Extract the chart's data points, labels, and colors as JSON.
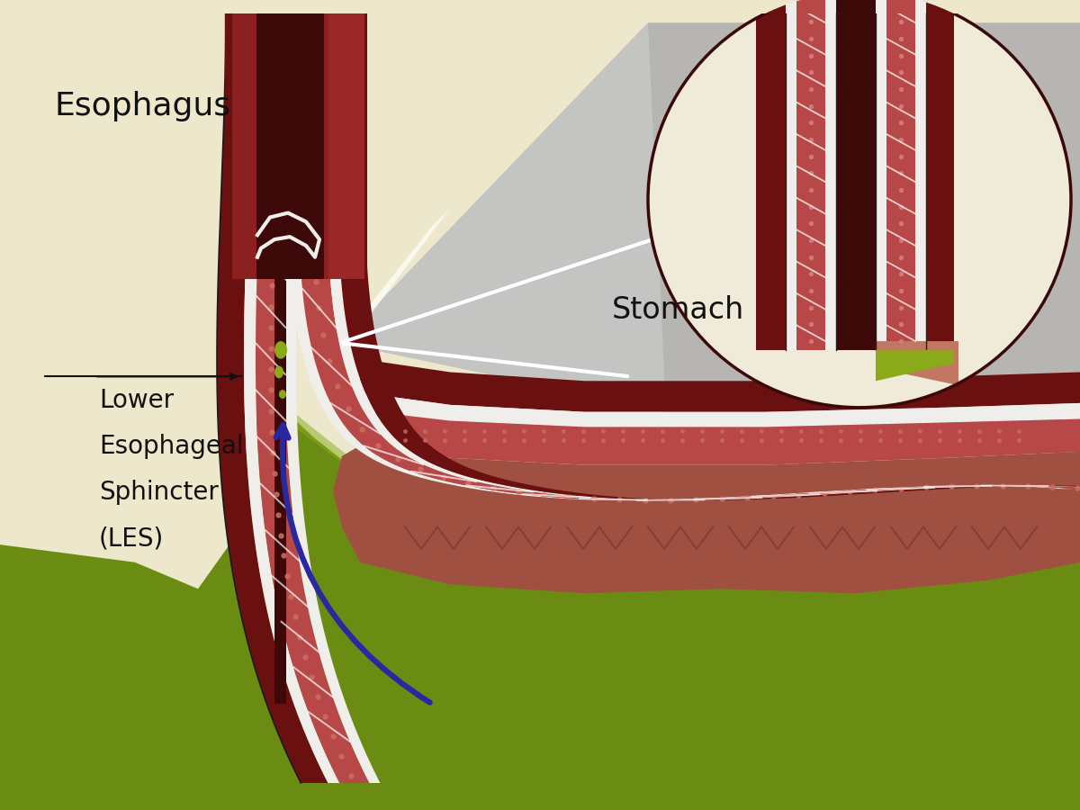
{
  "bg_color": "#ede8cc",
  "label_esophagus": "Esophagus",
  "label_stomach": "Stomach",
  "label_les_line1": "Lower",
  "label_les_line2": "Esophageal",
  "label_les_line3": "Sphincter",
  "label_les_line4": "(LES)",
  "dark_red": "#6b1010",
  "med_red": "#8c2020",
  "tissue_red": "#b84848",
  "dot_red": "#c87070",
  "white": "#f0eeea",
  "black": "#111111",
  "green_dark": "#5a7a0a",
  "green_mid": "#6b8c12",
  "green_light": "#8aaa1a",
  "stomach_pink": "#c07860",
  "stomach_inner": "#a05040",
  "blue_arrow": "#2828a0",
  "gray_light": "#c0c0c0",
  "gray_dark": "#888888",
  "zoom_bg": "#f0ead8",
  "lumen_dark": "#3d0808"
}
